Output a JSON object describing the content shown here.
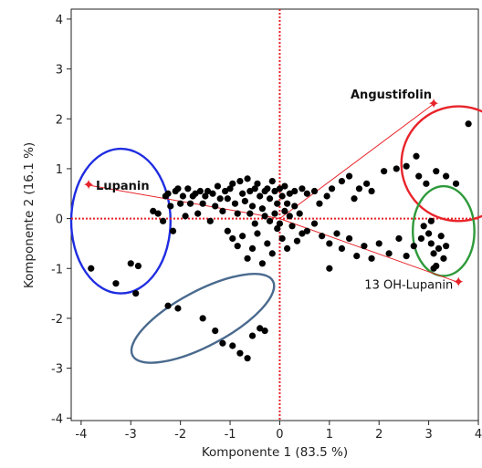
{
  "chart_data": {
    "type": "scatter",
    "title": "",
    "xlabel": "Komponente 1  (83.5 %)",
    "ylabel": "Komponente 2  (16.1 %)",
    "xlim": [
      -4.2,
      4.0
    ],
    "ylim": [
      -4.05,
      4.2
    ],
    "xticks": [
      -4,
      -3,
      -2,
      -1,
      0,
      1,
      2,
      3,
      4
    ],
    "yticks": [
      -4,
      -3,
      -2,
      -1,
      0,
      1,
      2,
      3,
      4
    ],
    "xtick_labels": [
      "-4",
      "-3",
      "-2",
      "-1",
      "0",
      "1",
      "2",
      "3",
      "4"
    ],
    "ytick_labels": [
      "-4",
      "-3",
      "-2",
      "-1",
      "0",
      "1",
      "2",
      "3",
      "4"
    ],
    "grid": false,
    "reference_lines": {
      "x": 0,
      "y": 0,
      "color": "#e8242a",
      "style": "dotted"
    },
    "point_color": "#000000",
    "points": [
      [
        -3.8,
        -1.0
      ],
      [
        -3.3,
        -1.3
      ],
      [
        -2.9,
        -1.5
      ],
      [
        -3.0,
        -0.9
      ],
      [
        -2.85,
        -0.95
      ],
      [
        -2.25,
        -1.75
      ],
      [
        -2.05,
        -1.8
      ],
      [
        -1.55,
        -2.0
      ],
      [
        -1.3,
        -2.25
      ],
      [
        -1.15,
        -2.5
      ],
      [
        -0.95,
        -2.55
      ],
      [
        -0.8,
        -2.7
      ],
      [
        -0.65,
        -2.8
      ],
      [
        -0.55,
        -2.35
      ],
      [
        -0.4,
        -2.2
      ],
      [
        -0.3,
        -2.25
      ],
      [
        -2.55,
        0.15
      ],
      [
        -2.45,
        0.1
      ],
      [
        -2.35,
        -0.05
      ],
      [
        -2.25,
        0.5
      ],
      [
        -2.3,
        0.45
      ],
      [
        -2.2,
        0.25
      ],
      [
        -2.1,
        0.55
      ],
      [
        -2.05,
        0.6
      ],
      [
        -2.15,
        -0.25
      ],
      [
        -2.0,
        0.3
      ],
      [
        -1.95,
        0.45
      ],
      [
        -1.9,
        0.05
      ],
      [
        -1.85,
        0.6
      ],
      [
        -1.8,
        0.3
      ],
      [
        -1.75,
        0.45
      ],
      [
        -1.7,
        0.5
      ],
      [
        -1.65,
        0.1
      ],
      [
        -1.6,
        0.55
      ],
      [
        -1.55,
        0.3
      ],
      [
        -1.5,
        0.45
      ],
      [
        -1.45,
        0.55
      ],
      [
        -1.4,
        -0.05
      ],
      [
        -1.35,
        0.5
      ],
      [
        -1.3,
        0.25
      ],
      [
        -1.25,
        0.65
      ],
      [
        -1.2,
        0.4
      ],
      [
        -1.15,
        0.15
      ],
      [
        -1.1,
        0.55
      ],
      [
        -1.05,
        0.4
      ],
      [
        -1.0,
        0.6
      ],
      [
        -0.95,
        0.7
      ],
      [
        -0.9,
        0.3
      ],
      [
        -0.85,
        0.1
      ],
      [
        -0.8,
        0.75
      ],
      [
        -0.75,
        0.5
      ],
      [
        -0.7,
        0.35
      ],
      [
        -0.65,
        0.8
      ],
      [
        -0.6,
        0.55
      ],
      [
        -0.55,
        0.25
      ],
      [
        -0.5,
        0.6
      ],
      [
        -0.45,
        0.7
      ],
      [
        -0.4,
        0.45
      ],
      [
        -0.35,
        0.2
      ],
      [
        -0.3,
        0.55
      ],
      [
        -0.25,
        0.6
      ],
      [
        -0.2,
        0.4
      ],
      [
        -0.15,
        0.75
      ],
      [
        -0.1,
        0.55
      ],
      [
        -0.05,
        0.3
      ],
      [
        0.0,
        0.6
      ],
      [
        0.05,
        0.45
      ],
      [
        0.1,
        0.65
      ],
      [
        0.15,
        0.3
      ],
      [
        0.2,
        0.5
      ],
      [
        -1.05,
        -0.25
      ],
      [
        -0.95,
        -0.4
      ],
      [
        -0.85,
        -0.55
      ],
      [
        -0.75,
        -0.35
      ],
      [
        -0.65,
        -0.8
      ],
      [
        -0.55,
        -0.6
      ],
      [
        -0.45,
        -0.3
      ],
      [
        -0.35,
        -0.9
      ],
      [
        -0.25,
        -0.5
      ],
      [
        -0.15,
        -0.7
      ],
      [
        -0.05,
        -0.2
      ],
      [
        0.05,
        -0.4
      ],
      [
        0.15,
        -0.6
      ],
      [
        0.25,
        -0.15
      ],
      [
        0.35,
        -0.45
      ],
      [
        0.45,
        -0.3
      ],
      [
        -0.6,
        0.1
      ],
      [
        -0.5,
        -0.1
      ],
      [
        -0.3,
        0.05
      ],
      [
        -0.2,
        -0.05
      ],
      [
        -0.1,
        0.1
      ],
      [
        0.0,
        -0.1
      ],
      [
        0.1,
        0.15
      ],
      [
        0.2,
        0.05
      ],
      [
        0.3,
        0.25
      ],
      [
        0.4,
        0.1
      ],
      [
        0.3,
        0.55
      ],
      [
        0.45,
        0.6
      ],
      [
        0.55,
        0.5
      ],
      [
        0.7,
        0.55
      ],
      [
        0.8,
        0.3
      ],
      [
        0.95,
        0.45
      ],
      [
        1.05,
        0.6
      ],
      [
        1.25,
        0.75
      ],
      [
        1.4,
        0.85
      ],
      [
        1.5,
        0.4
      ],
      [
        1.6,
        0.6
      ],
      [
        1.75,
        0.7
      ],
      [
        1.85,
        0.55
      ],
      [
        0.55,
        -0.25
      ],
      [
        0.7,
        -0.1
      ],
      [
        0.85,
        -0.35
      ],
      [
        1.0,
        -0.5
      ],
      [
        1.15,
        -0.3
      ],
      [
        1.25,
        -0.6
      ],
      [
        1.4,
        -0.4
      ],
      [
        1.55,
        -0.75
      ],
      [
        1.7,
        -0.55
      ],
      [
        1.85,
        -0.8
      ],
      [
        2.0,
        -0.5
      ],
      [
        2.2,
        -0.7
      ],
      [
        2.4,
        -0.4
      ],
      [
        2.55,
        -0.75
      ],
      [
        2.7,
        -0.55
      ],
      [
        2.85,
        -0.4
      ],
      [
        1.0,
        -1.0
      ],
      [
        2.1,
        0.95
      ],
      [
        2.35,
        1.0
      ],
      [
        2.55,
        1.05
      ],
      [
        2.75,
        1.25
      ],
      [
        2.8,
        0.85
      ],
      [
        2.95,
        0.7
      ],
      [
        3.15,
        0.95
      ],
      [
        3.35,
        0.85
      ],
      [
        3.55,
        0.7
      ],
      [
        3.8,
        1.9
      ],
      [
        2.9,
        -0.15
      ],
      [
        3.0,
        -0.3
      ],
      [
        3.05,
        -0.5
      ],
      [
        3.1,
        -0.7
      ],
      [
        3.15,
        -0.95
      ],
      [
        3.2,
        -0.6
      ],
      [
        3.25,
        -0.35
      ],
      [
        3.3,
        -0.8
      ],
      [
        3.05,
        -0.05
      ],
      [
        3.1,
        -1.0
      ],
      [
        3.35,
        -0.55
      ]
    ],
    "loadings": [
      {
        "label": "Lupanin",
        "x": -3.85,
        "y": 0.67
      },
      {
        "label": "Angustifolin",
        "x": 3.1,
        "y": 2.3
      },
      {
        "label": "13 OH-Lupanin",
        "x": 3.6,
        "y": -1.28
      }
    ],
    "loading_color": "#e8242a",
    "ellipses": [
      {
        "name": "blue",
        "color": "#1f2de0",
        "cx": -3.2,
        "cy": -0.05,
        "rx": 1.0,
        "ry": 1.45,
        "angle": 0
      },
      {
        "name": "slate",
        "color": "#4a6a8e",
        "cx": -1.55,
        "cy": -2.0,
        "rx": 1.6,
        "ry": 0.55,
        "angle": -28
      },
      {
        "name": "red",
        "color": "#e8242a",
        "cx": 3.6,
        "cy": 1.1,
        "rx": 1.15,
        "ry": 1.15,
        "angle": 0
      },
      {
        "name": "green",
        "color": "#2e9a3a",
        "cx": 3.3,
        "cy": -0.25,
        "rx": 0.62,
        "ry": 0.9,
        "angle": 0
      }
    ]
  }
}
